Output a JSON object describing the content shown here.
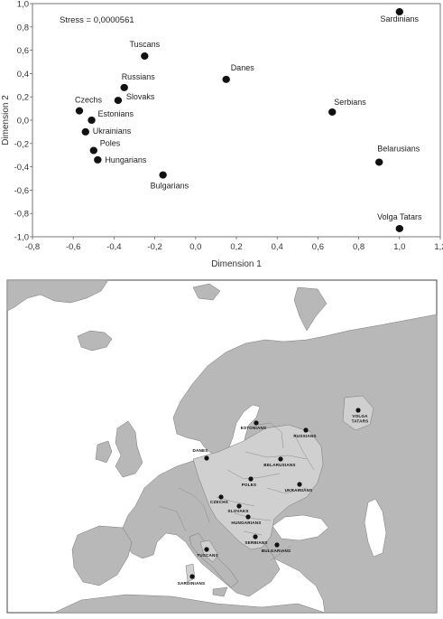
{
  "chart_data": {
    "type": "scatter",
    "title": "",
    "xlabel": "Dimension 1",
    "ylabel": "Dimension 2",
    "xlim": [
      -0.8,
      1.2
    ],
    "ylim": [
      -1.0,
      1.0
    ],
    "xticks": [
      "-0,8",
      "-0,6",
      "-0,4",
      "-0,2",
      "0,0",
      "0,2",
      "0,4",
      "0,6",
      "0,8",
      "1,0",
      "1,2"
    ],
    "yticks": [
      "1,0",
      "0,8",
      "0,6",
      "0,4",
      "0,2",
      "0,0",
      "-0,2",
      "-0,4",
      "-0,6",
      "-0,8",
      "-1,0"
    ],
    "annotation": "Stress = 0,0000561",
    "grid": false,
    "points": [
      {
        "label": "Sardinians",
        "x": 1.0,
        "y": 0.93
      },
      {
        "label": "Tuscans",
        "x": -0.25,
        "y": 0.55
      },
      {
        "label": "Danes",
        "x": 0.15,
        "y": 0.35
      },
      {
        "label": "Russians",
        "x": -0.35,
        "y": 0.28
      },
      {
        "label": "Slovaks",
        "x": -0.38,
        "y": 0.17
      },
      {
        "label": "Czechs",
        "x": -0.57,
        "y": 0.08
      },
      {
        "label": "Estonians",
        "x": -0.51,
        "y": 0.0
      },
      {
        "label": "Serbians",
        "x": 0.67,
        "y": 0.07
      },
      {
        "label": "Ukrainians",
        "x": -0.54,
        "y": -0.1
      },
      {
        "label": "Poles",
        "x": -0.5,
        "y": -0.26
      },
      {
        "label": "Hungarians",
        "x": -0.48,
        "y": -0.34
      },
      {
        "label": "Belarusians",
        "x": 0.9,
        "y": -0.36
      },
      {
        "label": "Bulgarians",
        "x": -0.16,
        "y": -0.47
      },
      {
        "label": "Volga Tatars",
        "x": 1.0,
        "y": -0.93
      }
    ]
  },
  "map": {
    "colors": {
      "sea": "#ffffff",
      "land": "#b8b8b8",
      "highlight": "#d0d0d0",
      "border": "#777777",
      "frame": "#444444"
    },
    "labels": [
      {
        "id": "volga-tatars",
        "lines": [
          "VOLGA",
          "TATARS"
        ]
      },
      {
        "id": "estonians",
        "lines": [
          "ESTONIANS"
        ]
      },
      {
        "id": "russians",
        "lines": [
          "RUSSIANS"
        ]
      },
      {
        "id": "danes",
        "lines": [
          "DANES"
        ]
      },
      {
        "id": "belarusians",
        "lines": [
          "BELARUSIANS"
        ]
      },
      {
        "id": "poles",
        "lines": [
          "POLES"
        ]
      },
      {
        "id": "ukrainians",
        "lines": [
          "UKRAINIANS"
        ]
      },
      {
        "id": "czechs",
        "lines": [
          "CZECHS"
        ]
      },
      {
        "id": "slovaks",
        "lines": [
          "SLOVAKS"
        ]
      },
      {
        "id": "hungarians",
        "lines": [
          "HUNGARIANS"
        ]
      },
      {
        "id": "serbians",
        "lines": [
          "SERBIANS"
        ]
      },
      {
        "id": "bulgarians",
        "lines": [
          "BULGARIANS"
        ]
      },
      {
        "id": "tuscans",
        "lines": [
          "TUSCANS"
        ]
      },
      {
        "id": "sardinians",
        "lines": [
          "SARDINIANS"
        ]
      }
    ]
  }
}
